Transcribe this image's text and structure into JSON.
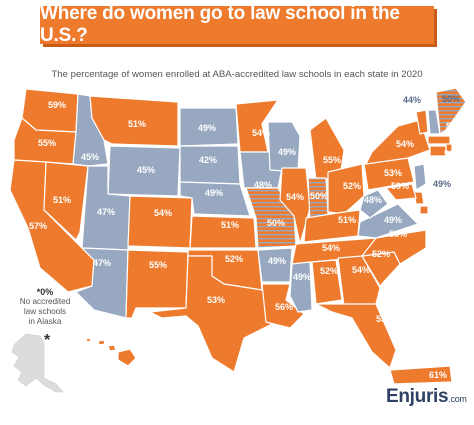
{
  "title": "Where do women go to law school in the U.S.?",
  "subtitle": "The percentage of women enrolled at ABA-accredited law schools in each state in 2020",
  "colors": {
    "above_50": "#ee7a2d",
    "below_50": "#97a8c0",
    "equal_50": "hatched",
    "background": "#ffffff"
  },
  "states": [
    {
      "id": "WA",
      "value": "59%"
    },
    {
      "id": "OR",
      "value": "55%"
    },
    {
      "id": "CA",
      "value": "57%"
    },
    {
      "id": "NV",
      "value": "51%"
    },
    {
      "id": "ID",
      "value": "45%"
    },
    {
      "id": "MT",
      "value": "51%"
    },
    {
      "id": "WY",
      "value": "45%"
    },
    {
      "id": "UT",
      "value": "47%"
    },
    {
      "id": "AZ",
      "value": "47%"
    },
    {
      "id": "CO",
      "value": "54%"
    },
    {
      "id": "NM",
      "value": "55%"
    },
    {
      "id": "ND",
      "value": "49%"
    },
    {
      "id": "SD",
      "value": "42%"
    },
    {
      "id": "NE",
      "value": "49%"
    },
    {
      "id": "KS",
      "value": "51%"
    },
    {
      "id": "OK",
      "value": "52%"
    },
    {
      "id": "TX",
      "value": "53%"
    },
    {
      "id": "MN",
      "value": "54%"
    },
    {
      "id": "IA",
      "value": "48%"
    },
    {
      "id": "MO",
      "value": "50%"
    },
    {
      "id": "AR",
      "value": "49%"
    },
    {
      "id": "LA",
      "value": "56%"
    },
    {
      "id": "WI",
      "value": "49%"
    },
    {
      "id": "IL",
      "value": "54%"
    },
    {
      "id": "MI",
      "value": "55%"
    },
    {
      "id": "IN",
      "value": "50%"
    },
    {
      "id": "OH",
      "value": "52%"
    },
    {
      "id": "KY",
      "value": "51%"
    },
    {
      "id": "TN",
      "value": "54%"
    },
    {
      "id": "MS",
      "value": "49%"
    },
    {
      "id": "AL",
      "value": "52%"
    },
    {
      "id": "GA",
      "value": "54%"
    },
    {
      "id": "FL",
      "value": "55%"
    },
    {
      "id": "SC",
      "value": "52%"
    },
    {
      "id": "NC",
      "value": "58%"
    },
    {
      "id": "VA",
      "value": "49%"
    },
    {
      "id": "WV",
      "value": "48%"
    },
    {
      "id": "PA",
      "value": "53%"
    },
    {
      "id": "NY",
      "value": "54%"
    },
    {
      "id": "VT",
      "value": "58%"
    },
    {
      "id": "NH",
      "value": "44%"
    },
    {
      "id": "ME",
      "value": "50%"
    },
    {
      "id": "MA",
      "value": "57%"
    },
    {
      "id": "RI",
      "value": "58%"
    },
    {
      "id": "CT",
      "value": "54%"
    },
    {
      "id": "NJ",
      "value": "49%"
    },
    {
      "id": "DE",
      "value": "54%"
    },
    {
      "id": "MD",
      "value": "59%"
    },
    {
      "id": "DC",
      "value": "58%"
    },
    {
      "id": "HI",
      "value": "53%"
    },
    {
      "id": "PR",
      "value": "61%"
    },
    {
      "id": "AK",
      "value": "*0%"
    }
  ],
  "alaska_note": {
    "value": "*0%",
    "line1": "No accredited",
    "line2": "law schools",
    "line3": "in Alaska",
    "asterisk": "*"
  },
  "logo": {
    "brand": "Enjuris",
    "suffix": ".com"
  }
}
